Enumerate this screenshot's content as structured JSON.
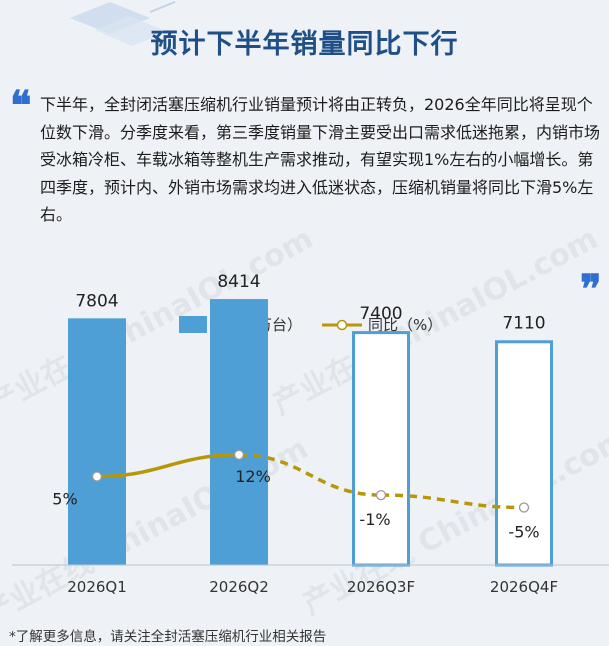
{
  "title": "预计下半年销量同比下行",
  "paragraph": "下半年，全封闭活塞压缩机行业销量预计将由正转负，2026全年同比将呈现个位数下滑。分季度来看，第三季度销量下滑主要受出口需求低迷拖累，内销市场受冰箱冷柜、车载冰箱等整机生产需求推动，有望实现1%左右的小幅增长。第四季度，预计内、外销市场需求均进入低迷状态，压缩机销量将同比下滑5%左右。",
  "footnote": "*了解更多信息，请关注全封活塞压缩机行业相关报告",
  "watermark": "产业在线 ChinaIOL.com",
  "colors": {
    "bar": "#4d9fd6",
    "bar_outline": "#4d9fd6",
    "line": "#b8960c",
    "title": "#1e4f86",
    "quote": "#2f6fd0"
  },
  "icons": {
    "open_quote": "open-quote-icon",
    "close_quote": "close-quote-icon"
  },
  "chart_data": {
    "type": "bar",
    "categories": [
      "2026Q1",
      "2026Q2",
      "2026Q3F",
      "2026Q4F"
    ],
    "series": [
      {
        "name": "销量（万台）",
        "type": "bar",
        "values": [
          7804,
          8414,
          7400,
          7110
        ],
        "forecast": [
          false,
          false,
          true,
          true
        ]
      },
      {
        "name": "同比（%）",
        "type": "line",
        "values": [
          5,
          12,
          -1,
          -5
        ],
        "labels": [
          "5%",
          "12%",
          "-1%",
          "-5%"
        ]
      }
    ],
    "legend": "top-center"
  }
}
